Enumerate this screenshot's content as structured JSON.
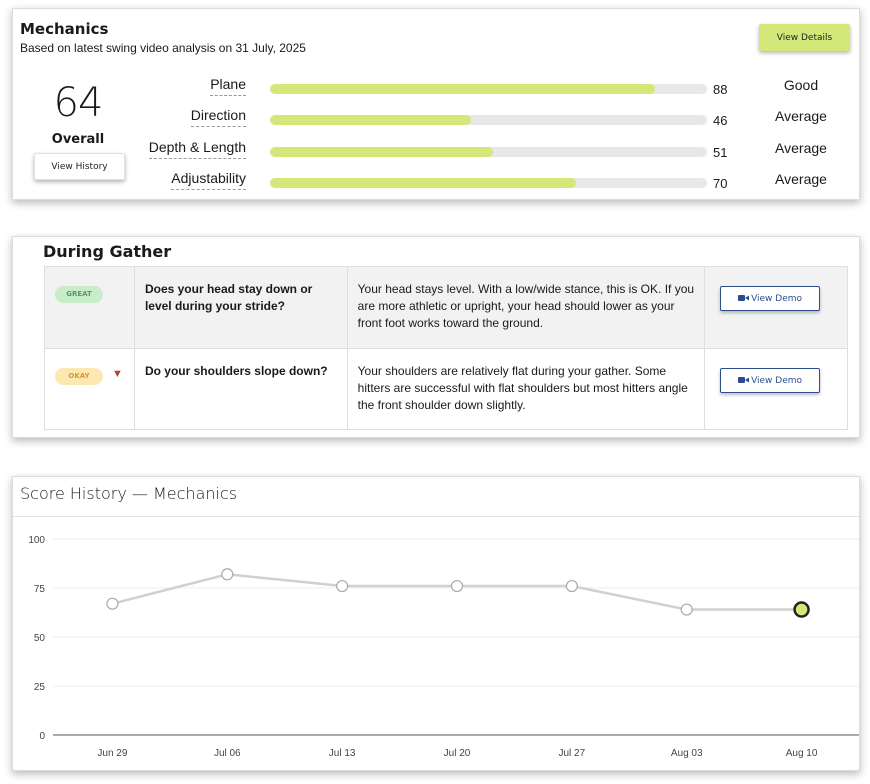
{
  "mechanics": {
    "title": "Mechanics",
    "subtitle": "Based on latest swing video analysis on 31 July, 2025",
    "view_details_label": "View Details",
    "overall_score": "64",
    "overall_label": "Overall",
    "view_history_label": "View History",
    "metrics": [
      {
        "label": "Plane",
        "value": 88,
        "value_text": "88",
        "rating": "Good"
      },
      {
        "label": "Direction",
        "value": 46,
        "value_text": "46",
        "rating": "Average"
      },
      {
        "label": "Depth & Length",
        "value": 51,
        "value_text": "51",
        "rating": "Average"
      },
      {
        "label": "Adjustability",
        "value": 70,
        "value_text": "70",
        "rating": "Average"
      }
    ],
    "bar_color": "#d4e87a"
  },
  "gather": {
    "title": "During Gather",
    "rows": [
      {
        "badge": "GREAT",
        "question": "Does your head stay down or level during your stride?",
        "answer": "Your head stays level. With a low/wide stance, this is OK. If you are more athletic or upright, your head should lower as your front foot works toward the ground.",
        "demo_label": "View Demo"
      },
      {
        "badge": "OKAY",
        "question": "Do your shoulders slope down?",
        "answer": "Your shoulders are relatively flat during your gather. Some hitters are successful with flat shoulders but most hitters angle the front shoulder down slightly.",
        "demo_label": "View Demo"
      }
    ],
    "demo_icon": "video-camera-icon"
  },
  "history": {
    "title": "Score History — Mechanics"
  },
  "chart_data": {
    "type": "line",
    "title": "Score History — Mechanics",
    "categories": [
      "Jun 29",
      "Jul 06",
      "Jul 13",
      "Jul 20",
      "Jul 27",
      "Aug 03",
      "Aug 10"
    ],
    "series": [
      {
        "values": [
          67,
          82,
          76,
          76,
          76,
          64,
          64
        ]
      }
    ],
    "ylim": [
      0,
      100
    ],
    "yticks": [
      0,
      25,
      50,
      75,
      100
    ],
    "grid": true,
    "highlight_last": true,
    "line_color": "#d0d0d0",
    "highlight_color": "#d4e87a"
  }
}
